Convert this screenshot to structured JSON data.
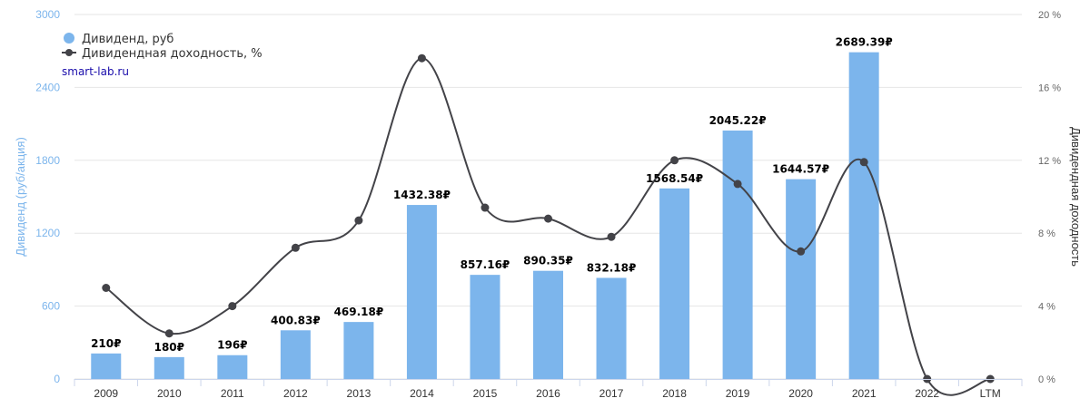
{
  "chart_data": {
    "type": "bar",
    "categories": [
      "2009",
      "2010",
      "2011",
      "2012",
      "2013",
      "2014",
      "2015",
      "2016",
      "2017",
      "2018",
      "2019",
      "2020",
      "2021",
      "2022",
      "LTM"
    ],
    "series": [
      {
        "name": "Дивиденд, руб",
        "type": "bar",
        "axis": "left",
        "color": "#7cb5ec",
        "values": [
          210,
          180,
          196,
          400.83,
          469.18,
          1432.38,
          857.16,
          890.35,
          832.18,
          1568.54,
          2045.22,
          1644.57,
          2689.39,
          null,
          null
        ],
        "labels": [
          "210₽",
          "180₽",
          "196₽",
          "400.83₽",
          "469.18₽",
          "1432.38₽",
          "857.16₽",
          "890.35₽",
          "832.18₽",
          "1568.54₽",
          "2045.22₽",
          "1644.57₽",
          "2689.39₽",
          "",
          ""
        ]
      },
      {
        "name": "Дивидендная доходность, %",
        "type": "line",
        "axis": "right",
        "color": "#434348",
        "values": [
          5.0,
          2.5,
          4.0,
          7.2,
          8.7,
          17.6,
          9.4,
          8.8,
          7.8,
          12.0,
          10.7,
          7.0,
          11.9,
          0,
          0
        ]
      }
    ],
    "ylabel": "Дивиденд (руб/акция)",
    "y2label": "Дивидендная доходность",
    "ylim": [
      0,
      3000
    ],
    "yticks": [
      "0",
      "600",
      "1200",
      "1800",
      "2400",
      "3000"
    ],
    "y2lim": [
      0,
      20
    ],
    "y2ticks": [
      "0 %",
      "4 %",
      "8 %",
      "12 %",
      "16 %",
      "20 %"
    ],
    "grid": true,
    "legend_position": "top-left",
    "source": "smart-lab.ru"
  },
  "colors": {
    "bar": "#7cb5ec",
    "line": "#434348",
    "grid": "#e6e6e6",
    "axis": "#ccd6eb"
  }
}
